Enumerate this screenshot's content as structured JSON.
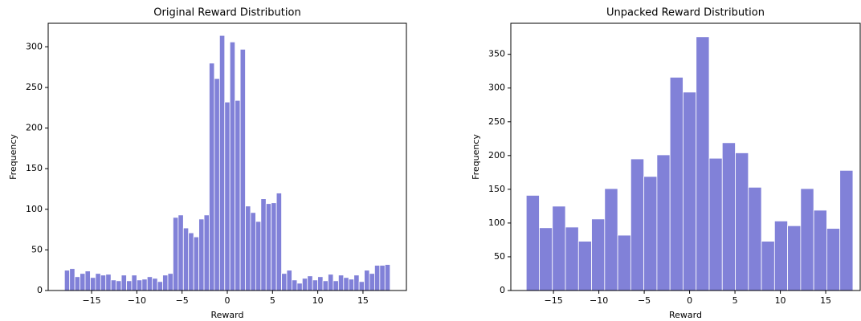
{
  "chart_data": [
    {
      "type": "histogram",
      "title": "Original Reward Distribution",
      "xlabel": "Reward",
      "ylabel": "Frequency",
      "color": "#8181d8",
      "bins": [
        -18,
        -17.429,
        -16.857,
        -16.286,
        -15.714,
        -15.143,
        -14.571,
        -14,
        -13.429,
        -12.857,
        -12.286,
        -11.714,
        -11.143,
        -10.571,
        -10,
        -9.429,
        -8.857,
        -8.286,
        -7.714,
        -7.143,
        -6.571,
        -6,
        -5.429,
        -4.857,
        -4.286,
        -3.714,
        -3.143,
        -2.571,
        -2,
        -1.429,
        -0.857,
        -0.286,
        0.286,
        0.857,
        1.429,
        2,
        2.571,
        3.143,
        3.714,
        4.286,
        4.857,
        5.429,
        6,
        6.571,
        7.143,
        7.714,
        8.286,
        8.857,
        9.429,
        10,
        10.571,
        11.143,
        11.714,
        12.286,
        12.857,
        13.429,
        14,
        14.571,
        15.143,
        15.714,
        16.286,
        16.857,
        17.429,
        18
      ],
      "values": [
        25,
        27,
        17,
        21,
        24,
        16,
        21,
        19,
        20,
        13,
        12,
        19,
        12,
        19,
        13,
        14,
        17,
        15,
        11,
        19,
        21,
        90,
        93,
        77,
        71,
        66,
        88,
        93,
        280,
        261,
        314,
        232,
        306,
        234,
        297,
        104,
        96,
        85,
        113,
        107,
        108,
        120,
        21,
        25,
        13,
        9,
        15,
        18,
        13,
        17,
        12,
        20,
        12,
        19,
        16,
        14,
        19,
        11,
        25,
        21,
        31,
        31,
        32
      ],
      "xlim": [
        -19.8,
        19.8
      ],
      "ylim": [
        0,
        329
      ],
      "xticks": [
        {
          "value": -15,
          "label": "−15"
        },
        {
          "value": -10,
          "label": "−10"
        },
        {
          "value": -5,
          "label": "−5"
        },
        0,
        5,
        10,
        15
      ],
      "yticks": [
        0,
        50,
        100,
        150,
        200,
        250,
        300
      ]
    },
    {
      "type": "histogram",
      "title": "Unpacked Reward Distribution",
      "xlabel": "Reward",
      "ylabel": "Frequency",
      "color": "#8181d8",
      "bins": [
        -18,
        -16.56,
        -15.12,
        -13.68,
        -12.24,
        -10.8,
        -9.36,
        -7.92,
        -6.48,
        -5.04,
        -3.6,
        -2.16,
        -0.72,
        0.72,
        2.16,
        3.6,
        5.04,
        6.48,
        7.92,
        9.36,
        10.8,
        12.24,
        13.68,
        15.12,
        16.56,
        18
      ],
      "values": [
        141,
        93,
        125,
        94,
        73,
        106,
        151,
        82,
        195,
        169,
        201,
        316,
        294,
        376,
        196,
        219,
        204,
        153,
        73,
        103,
        96,
        151,
        119,
        92,
        178
      ],
      "xlim": [
        -19.7,
        18.8
      ],
      "ylim": [
        0,
        396
      ],
      "xticks": [
        {
          "value": -15,
          "label": "−15"
        },
        {
          "value": -10,
          "label": "−10"
        },
        {
          "value": -5,
          "label": "−5"
        },
        0,
        5,
        10,
        15
      ],
      "yticks": [
        0,
        50,
        100,
        150,
        200,
        250,
        300,
        350
      ]
    }
  ]
}
